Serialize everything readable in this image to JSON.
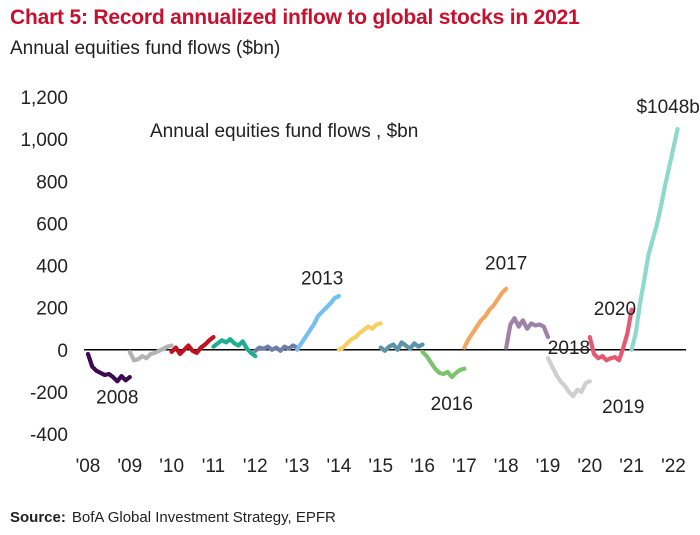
{
  "chart_data": {
    "type": "line",
    "title": "Chart 5: Record annualized inflow to global stocks in 2021",
    "subtitle": "Annual equities fund flows ($bn)",
    "inner_title": "Annual equities fund flows , $bn",
    "source_label": "Source:",
    "source_text": "BofA Global Investment Strategy, EPFR",
    "ylim": [
      -400,
      1200
    ],
    "xlim": [
      2008,
      2022.3
    ],
    "y_ticks": [
      {
        "value": 1200,
        "label": "1,200"
      },
      {
        "value": 1000,
        "label": "1,000"
      },
      {
        "value": 800,
        "label": "800"
      },
      {
        "value": 600,
        "label": "600"
      },
      {
        "value": 400,
        "label": "400"
      },
      {
        "value": 200,
        "label": "200"
      },
      {
        "value": 0,
        "label": "0"
      },
      {
        "value": -200,
        "label": "-200"
      },
      {
        "value": -400,
        "label": "-400"
      }
    ],
    "x_ticks": [
      {
        "value": 2008,
        "label": "'08"
      },
      {
        "value": 2009,
        "label": "'09"
      },
      {
        "value": 2010,
        "label": "'10"
      },
      {
        "value": 2011,
        "label": "'11"
      },
      {
        "value": 2012,
        "label": "'12"
      },
      {
        "value": 2013,
        "label": "'13"
      },
      {
        "value": 2014,
        "label": "'14"
      },
      {
        "value": 2015,
        "label": "'15"
      },
      {
        "value": 2016,
        "label": "'16"
      },
      {
        "value": 2017,
        "label": "'17"
      },
      {
        "value": 2018,
        "label": "'18"
      },
      {
        "value": 2019,
        "label": "'19"
      },
      {
        "value": 2020,
        "label": "'20"
      },
      {
        "value": 2021,
        "label": "'21"
      },
      {
        "value": 2022,
        "label": "'22"
      }
    ],
    "series": [
      {
        "color": "#3b0a4f",
        "x": [
          2008.0,
          2008.1,
          2008.2,
          2008.3,
          2008.4,
          2008.5,
          2008.6,
          2008.7,
          2008.8,
          2008.9,
          2009.0
        ],
        "y": [
          -20,
          -80,
          -100,
          -110,
          -120,
          -115,
          -130,
          -150,
          -125,
          -145,
          -130
        ]
      },
      {
        "color": "#b3b3b3",
        "x": [
          2009.0,
          2009.1,
          2009.2,
          2009.3,
          2009.4,
          2009.5,
          2009.6,
          2009.7,
          2009.8,
          2009.9,
          2010.0
        ],
        "y": [
          -10,
          -50,
          -45,
          -30,
          -40,
          -20,
          -15,
          -5,
          5,
          15,
          20
        ]
      },
      {
        "color": "#c0121e",
        "x": [
          2010.0,
          2010.1,
          2010.2,
          2010.3,
          2010.4,
          2010.5,
          2010.6,
          2010.7,
          2010.8,
          2010.9,
          2011.0
        ],
        "y": [
          -10,
          10,
          -20,
          0,
          20,
          -5,
          -15,
          10,
          25,
          45,
          60
        ]
      },
      {
        "color": "#1fae8f",
        "x": [
          2011.0,
          2011.1,
          2011.2,
          2011.3,
          2011.4,
          2011.5,
          2011.6,
          2011.7,
          2011.8,
          2011.9,
          2012.0
        ],
        "y": [
          15,
          30,
          45,
          35,
          50,
          30,
          20,
          40,
          5,
          -15,
          -30
        ]
      },
      {
        "color": "#6d7fa8",
        "x": [
          2012.0,
          2012.1,
          2012.2,
          2012.3,
          2012.4,
          2012.5,
          2012.6,
          2012.7,
          2012.8,
          2012.9,
          2013.0
        ],
        "y": [
          -5,
          10,
          5,
          15,
          0,
          10,
          -5,
          15,
          5,
          20,
          10
        ]
      },
      {
        "color": "#74c0ef",
        "x": [
          2013.0,
          2013.1,
          2013.2,
          2013.3,
          2013.4,
          2013.5,
          2013.6,
          2013.7,
          2013.8,
          2013.9,
          2014.0
        ],
        "y": [
          0,
          30,
          60,
          90,
          120,
          160,
          180,
          200,
          220,
          245,
          255
        ]
      },
      {
        "color": "#f5cf62",
        "x": [
          2014.0,
          2014.1,
          2014.2,
          2014.3,
          2014.4,
          2014.5,
          2014.6,
          2014.7,
          2014.8,
          2014.9,
          2015.0
        ],
        "y": [
          0,
          10,
          30,
          50,
          60,
          80,
          95,
          110,
          100,
          120,
          125
        ]
      },
      {
        "color": "#5b93a8",
        "x": [
          2015.0,
          2015.1,
          2015.2,
          2015.3,
          2015.4,
          2015.5,
          2015.6,
          2015.7,
          2015.8,
          2015.9,
          2016.0
        ],
        "y": [
          10,
          -5,
          15,
          25,
          0,
          35,
          20,
          5,
          30,
          15,
          25
        ]
      },
      {
        "color": "#7cc36e",
        "x": [
          2016.0,
          2016.1,
          2016.2,
          2016.3,
          2016.4,
          2016.5,
          2016.6,
          2016.7,
          2016.8,
          2016.9,
          2017.0
        ],
        "y": [
          -10,
          -30,
          -60,
          -90,
          -110,
          -115,
          -105,
          -130,
          -110,
          -95,
          -90
        ]
      },
      {
        "color": "#f2a761",
        "x": [
          2017.0,
          2017.1,
          2017.2,
          2017.3,
          2017.4,
          2017.5,
          2017.6,
          2017.7,
          2017.8,
          2017.9,
          2018.0
        ],
        "y": [
          10,
          50,
          80,
          110,
          140,
          160,
          190,
          210,
          240,
          270,
          290
        ]
      },
      {
        "color": "#9e82a8",
        "x": [
          2018.0,
          2018.1,
          2018.2,
          2018.3,
          2018.4,
          2018.5,
          2018.6,
          2018.7,
          2018.8,
          2018.9,
          2019.0
        ],
        "y": [
          10,
          120,
          150,
          110,
          140,
          100,
          125,
          115,
          120,
          110,
          60
        ]
      },
      {
        "color": "#cfcfcf",
        "x": [
          2019.0,
          2019.1,
          2019.2,
          2019.3,
          2019.4,
          2019.5,
          2019.6,
          2019.7,
          2019.8,
          2019.9,
          2020.0
        ],
        "y": [
          -40,
          -80,
          -120,
          -150,
          -170,
          -200,
          -220,
          -190,
          -200,
          -160,
          -150
        ]
      },
      {
        "color": "#e25a73",
        "x": [
          2020.0,
          2020.1,
          2020.2,
          2020.3,
          2020.4,
          2020.5,
          2020.6,
          2020.7,
          2020.8,
          2020.9,
          2021.0
        ],
        "y": [
          60,
          -20,
          -40,
          -30,
          -50,
          -40,
          -35,
          -50,
          10,
          80,
          190
        ]
      },
      {
        "color": "#8fd9cc",
        "x": [
          2021.0,
          2021.1,
          2021.2,
          2021.3,
          2021.4,
          2021.5,
          2021.6,
          2021.7,
          2021.8,
          2021.9,
          2022.0,
          2022.1
        ],
        "y": [
          0,
          80,
          220,
          330,
          450,
          520,
          590,
          680,
          780,
          870,
          960,
          1048
        ]
      }
    ],
    "annotations": [
      {
        "text": "2008",
        "x": 2008.7,
        "y": -255
      },
      {
        "text": "2013",
        "x": 2013.6,
        "y": 310
      },
      {
        "text": "2016",
        "x": 2016.7,
        "y": -285
      },
      {
        "text": "2017",
        "x": 2018.0,
        "y": 380
      },
      {
        "text": "2018",
        "x": 2019.5,
        "y": -20
      },
      {
        "text": "2019",
        "x": 2020.8,
        "y": -300
      },
      {
        "text": "2020",
        "x": 2020.6,
        "y": 165
      },
      {
        "text": "$1048bn",
        "x": 2022.0,
        "y": 1125
      }
    ]
  }
}
